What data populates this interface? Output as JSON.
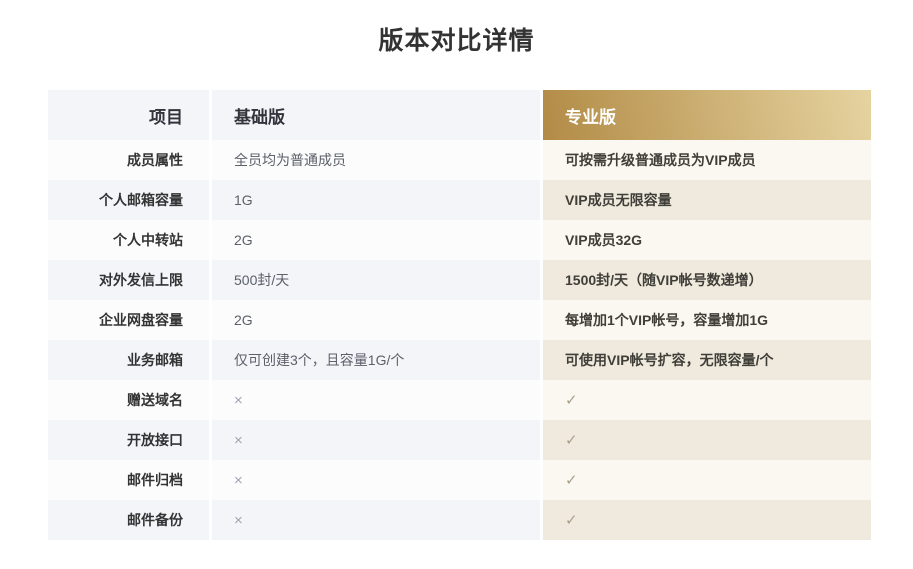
{
  "page": {
    "title": "版本对比详情",
    "background": "#ffffff"
  },
  "table": {
    "headers": {
      "item": "项目",
      "basic": "基础版",
      "pro": "专业版"
    },
    "colors": {
      "header_bg": "#f4f5f9",
      "row_bg": "#fcfcfd",
      "row_alt_bg": "#f4f5f9",
      "pro_header_gradient_start": "#b28b46",
      "pro_header_gradient_end": "#e6d3a0",
      "pro_header_text": "#ffffff",
      "pro_row_bg": "#faf8f1",
      "pro_row_alt_bg": "#efeadd",
      "label_text": "#333333",
      "basic_text": "#5b6069",
      "pro_text": "#403e39",
      "cross_color": "#9ca4b4",
      "check_color": "#ac9f8c"
    },
    "rows": [
      {
        "label": "成员属性",
        "basic": "全员均为普通成员",
        "pro": "可按需升级普通成员为VIP成员"
      },
      {
        "label": "个人邮箱容量",
        "basic": "1G",
        "pro": "VIP成员无限容量"
      },
      {
        "label": "个人中转站",
        "basic": "2G",
        "pro": "VIP成员32G"
      },
      {
        "label": "对外发信上限",
        "basic": "500封/天",
        "pro": "1500封/天（随VIP帐号数递增）"
      },
      {
        "label": "企业网盘容量",
        "basic": "2G",
        "pro": "每增加1个VIP帐号，容量增加1G"
      },
      {
        "label": "业务邮箱",
        "basic": "仅可创建3个，且容量1G/个",
        "pro": "可使用VIP帐号扩容，无限容量/个"
      },
      {
        "label": "赠送域名",
        "basic": "×",
        "pro": "✓"
      },
      {
        "label": "开放接口",
        "basic": "×",
        "pro": "✓"
      },
      {
        "label": "邮件归档",
        "basic": "×",
        "pro": "✓"
      },
      {
        "label": "邮件备份",
        "basic": "×",
        "pro": "✓"
      }
    ]
  }
}
